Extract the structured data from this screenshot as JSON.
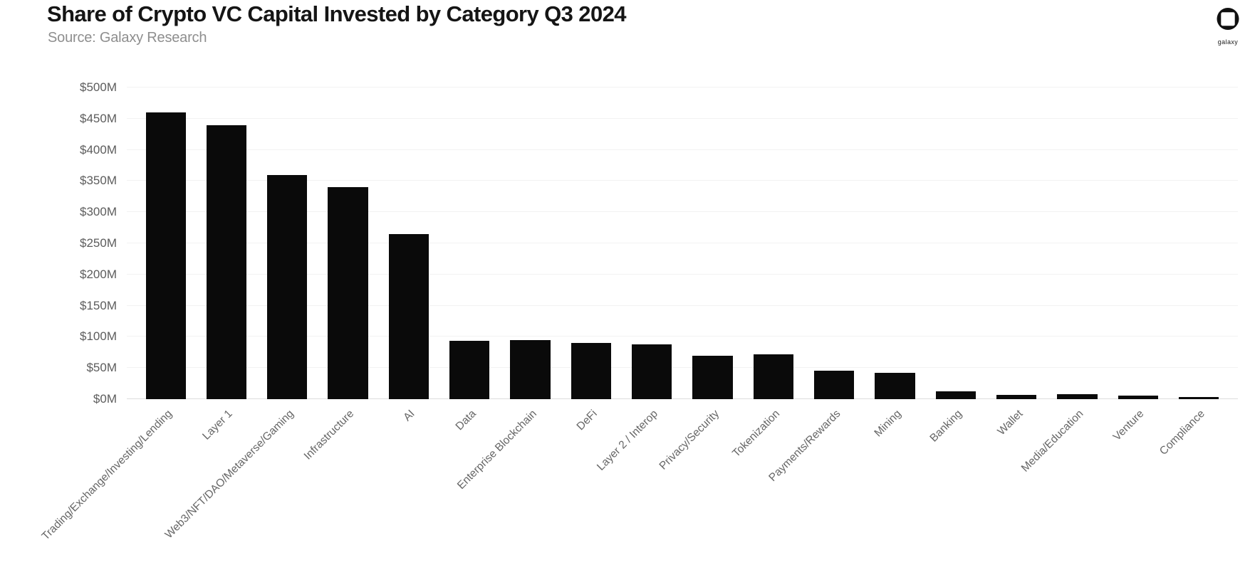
{
  "header": {
    "title": "Share of Crypto VC Capital Invested by Category Q3 2024",
    "subtitle": "Source: Galaxy Research",
    "logo_text": "galaxy"
  },
  "chart_data": {
    "type": "bar",
    "title": "Share of Crypto VC Capital Invested by Category Q3 2024",
    "source": "Source: Galaxy Research",
    "unit": "$M",
    "categories": [
      "Trading/Exchange/Investing/Lending",
      "Layer 1",
      "Web3/NFT/DAO/Metaverse/Gaming",
      "Infrastructure",
      "AI",
      "Data",
      "Enterprise Blockchain",
      "DeFi",
      "Layer 2 / Interop",
      "Privacy/Security",
      "Tokenization",
      "Payments/Rewards",
      "Mining",
      "Banking",
      "Wallet",
      "Media/Education",
      "Venture",
      "Compliance"
    ],
    "values": [
      460,
      440,
      360,
      340,
      265,
      94,
      95,
      90,
      88,
      70,
      72,
      46,
      42,
      13,
      7,
      8,
      6,
      3
    ],
    "ylim": [
      0,
      500
    ],
    "ytick_step": 50,
    "ytick_labels": [
      "$0M",
      "$50M",
      "$100M",
      "$150M",
      "$200M",
      "$250M",
      "$300M",
      "$350M",
      "$400M",
      "$450M",
      "$500M"
    ],
    "grid": true,
    "legend": "none",
    "colors": {
      "bar": "#0a0a0a",
      "gridline": "#f2f2f2",
      "baseline": "#dcdcdc",
      "ytick_text": "#5c5c5c",
      "xtick_text": "#666666",
      "title_text": "#151515",
      "subtitle_text": "#8e8e8e",
      "background": "#ffffff"
    }
  }
}
